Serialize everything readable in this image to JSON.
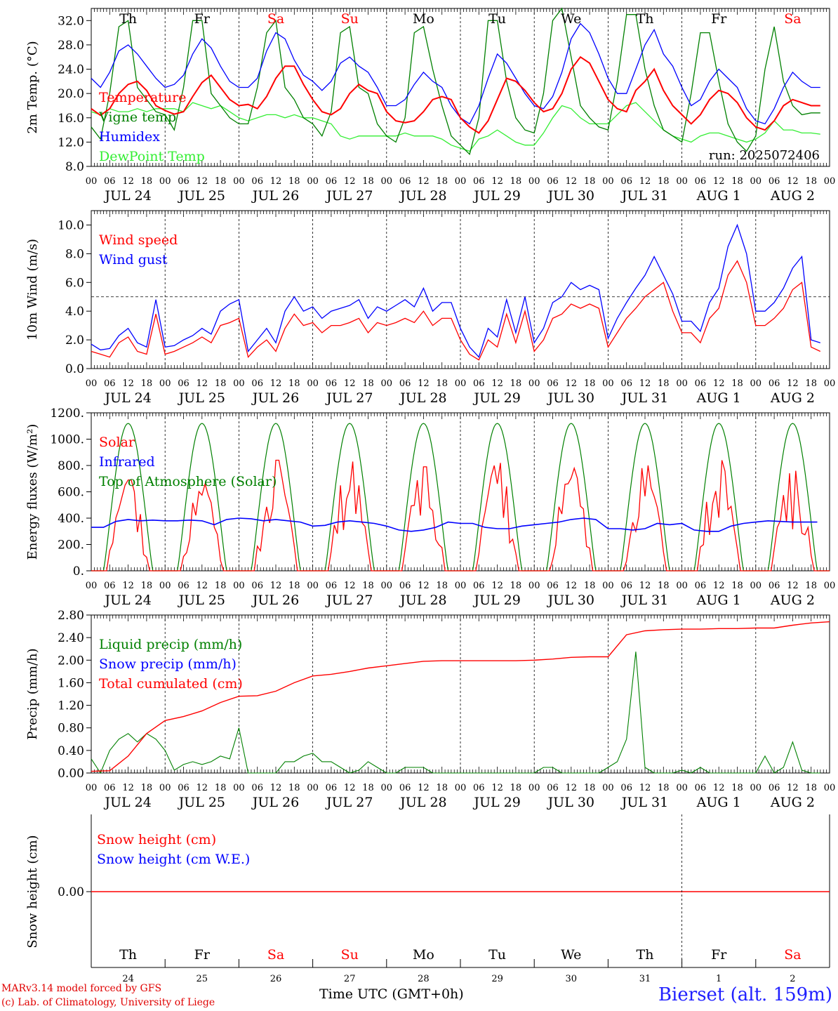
{
  "colors": {
    "red": "#ff0000",
    "green": "#008000",
    "blue": "#0000ff",
    "lightgreen": "#33ee33",
    "grid": "#000000"
  },
  "days": {
    "weekday": [
      "Th",
      "Fr",
      "Sa",
      "Su",
      "Mo",
      "Tu",
      "We",
      "Th",
      "Fr",
      "Sa"
    ],
    "weekend": [
      false,
      false,
      true,
      true,
      false,
      false,
      false,
      false,
      false,
      true
    ],
    "dates": [
      "JUL 24",
      "JUL 25",
      "JUL 26",
      "JUL 27",
      "JUL 28",
      "JUL 29",
      "JUL 30",
      "JUL 31",
      "AUG  1",
      "AUG  2"
    ],
    "day_numbers": [
      "24",
      "25",
      "26",
      "27",
      "28",
      "29",
      "30",
      "31",
      "1",
      "2"
    ],
    "hour_ticks": [
      "00",
      "06",
      "12",
      "18"
    ],
    "hour_end": "00"
  },
  "chart_data": [
    {
      "type": "line",
      "ylabel": "2m Temp. (°C)",
      "ylim": [
        8.0,
        34.0
      ],
      "yticks": [
        "8.0",
        "12.0",
        "16.0",
        "20.0",
        "24.0",
        "28.0",
        "32.0"
      ],
      "annotation": "run: 2025072406",
      "x_unit": "hours since JUL 24 00 UTC, 3-hourly",
      "series": [
        {
          "name": "Temperature",
          "color": "red",
          "values": [
            17.5,
            16.4,
            17.5,
            20.0,
            21.5,
            22.0,
            20.5,
            18.0,
            17.2,
            16.6,
            17.0,
            19.5,
            21.8,
            23.0,
            21.0,
            19.0,
            18.0,
            18.2,
            17.5,
            19.5,
            22.5,
            24.5,
            24.5,
            21.5,
            19.0,
            17.0,
            16.5,
            17.5,
            20.0,
            21.5,
            20.5,
            20.0,
            17.0,
            15.5,
            15.2,
            15.5,
            17.0,
            19.0,
            19.5,
            19.0,
            16.0,
            14.5,
            13.5,
            15.5,
            19.0,
            22.5,
            22.0,
            20.5,
            18.5,
            17.0,
            17.5,
            20.0,
            24.0,
            26.0,
            25.0,
            22.0,
            19.0,
            17.5,
            17.0,
            20.5,
            22.0,
            24.0,
            20.5,
            18.0,
            16.5,
            15.0,
            16.5,
            19.0,
            20.5,
            20.0,
            18.5,
            16.0,
            14.5,
            14.0,
            15.5,
            18.0,
            19.0,
            18.5,
            18.0,
            18.0
          ]
        },
        {
          "name": "Vigne temp",
          "color": "green",
          "values": [
            14.5,
            12.5,
            20.0,
            31.0,
            32.0,
            21.0,
            19.0,
            17.0,
            16.5,
            14.0,
            21.0,
            32.0,
            32.0,
            20.0,
            18.0,
            16.0,
            15.0,
            15.0,
            21.0,
            30.0,
            32.0,
            21.0,
            19.0,
            16.0,
            15.0,
            13.0,
            17.0,
            30.0,
            31.0,
            21.0,
            20.0,
            15.0,
            13.0,
            12.0,
            16.0,
            30.0,
            31.0,
            24.0,
            18.0,
            13.0,
            11.5,
            10.0,
            16.0,
            32.0,
            32.0,
            22.0,
            16.0,
            14.0,
            13.5,
            20.0,
            32.0,
            34.0,
            26.0,
            18.0,
            16.0,
            14.5,
            14.0,
            22.0,
            33.0,
            33.0,
            24.0,
            18.0,
            14.0,
            13.0,
            12.0,
            20.0,
            30.0,
            30.0,
            22.0,
            15.0,
            12.0,
            10.5,
            13.0,
            24.0,
            31.0,
            22.0,
            18.0,
            16.5,
            16.8,
            16.8
          ]
        },
        {
          "name": "Humidex",
          "color": "blue",
          "values": [
            22.5,
            21.0,
            23.5,
            27.0,
            28.0,
            26.5,
            24.5,
            22.5,
            21.0,
            21.5,
            23.0,
            26.5,
            29.0,
            27.5,
            24.5,
            22.0,
            21.0,
            21.0,
            22.5,
            27.0,
            30.0,
            29.0,
            25.5,
            23.0,
            22.0,
            20.5,
            22.0,
            25.0,
            26.0,
            24.5,
            23.5,
            21.0,
            18.0,
            18.0,
            19.0,
            21.5,
            23.5,
            22.0,
            21.0,
            18.0,
            16.0,
            15.0,
            18.0,
            22.5,
            26.5,
            25.0,
            22.5,
            20.0,
            18.0,
            17.5,
            19.5,
            23.5,
            29.0,
            31.5,
            30.0,
            26.5,
            22.5,
            20.0,
            20.0,
            24.0,
            28.0,
            30.5,
            26.5,
            24.5,
            21.0,
            18.0,
            19.0,
            22.0,
            24.0,
            22.5,
            21.0,
            17.5,
            15.5,
            15.0,
            17.5,
            21.0,
            23.5,
            22.0,
            21.0,
            21.0
          ]
        },
        {
          "name": "DewPoint Temp",
          "color": "lightgreen",
          "values": [
            17.0,
            16.5,
            17.5,
            17.0,
            17.0,
            17.5,
            17.0,
            17.5,
            17.5,
            17.5,
            17.0,
            18.5,
            18.0,
            17.5,
            18.0,
            17.0,
            16.0,
            15.5,
            16.0,
            16.5,
            16.5,
            16.0,
            16.5,
            16.0,
            16.0,
            15.5,
            15.0,
            13.0,
            12.5,
            13.0,
            13.0,
            13.0,
            13.0,
            13.0,
            13.5,
            13.0,
            13.0,
            13.0,
            12.5,
            11.5,
            11.0,
            10.5,
            12.5,
            13.0,
            14.0,
            13.0,
            12.0,
            11.5,
            11.5,
            13.5,
            16.0,
            18.0,
            17.5,
            16.0,
            15.0,
            15.0,
            15.0,
            16.5,
            18.0,
            18.5,
            17.0,
            15.5,
            14.0,
            13.0,
            12.5,
            12.0,
            13.0,
            13.5,
            13.5,
            13.0,
            12.5,
            12.0,
            12.5,
            13.5,
            15.5,
            14.0,
            14.0,
            13.5,
            13.5,
            13.3
          ]
        }
      ]
    },
    {
      "type": "line",
      "ylabel": "10m Wind (m/s)",
      "ylim": [
        0.0,
        11.0
      ],
      "yticks": [
        "0.0",
        "2.0",
        "4.0",
        "6.0",
        "8.0",
        "10.0"
      ],
      "reference_line": 5.0,
      "x_unit": "hours since JUL 24 00 UTC, 3-hourly",
      "series": [
        {
          "name": "Wind speed",
          "color": "red",
          "values": [
            1.2,
            1.0,
            0.8,
            1.8,
            2.2,
            1.2,
            1.0,
            3.8,
            1.0,
            1.2,
            1.5,
            1.8,
            2.2,
            1.8,
            3.0,
            3.2,
            3.5,
            0.8,
            1.5,
            2.0,
            1.2,
            2.8,
            3.8,
            3.0,
            3.2,
            2.5,
            3.0,
            3.0,
            3.2,
            3.5,
            2.5,
            3.2,
            3.0,
            3.2,
            3.5,
            3.2,
            4.0,
            3.0,
            3.5,
            3.5,
            2.0,
            1.0,
            0.6,
            2.0,
            1.5,
            3.8,
            1.8,
            4.0,
            1.2,
            2.0,
            3.5,
            3.8,
            4.5,
            4.2,
            4.5,
            4.2,
            1.5,
            2.5,
            3.5,
            4.2,
            5.0,
            5.5,
            6.0,
            4.0,
            2.5,
            2.5,
            1.8,
            3.5,
            4.2,
            6.5,
            7.5,
            6.0,
            3.0,
            3.0,
            3.5,
            4.2,
            5.5,
            6.0,
            1.5,
            1.2
          ]
        },
        {
          "name": "Wind gust",
          "color": "blue",
          "values": [
            1.7,
            1.3,
            1.4,
            2.3,
            2.8,
            1.8,
            1.5,
            4.8,
            1.5,
            1.6,
            2.0,
            2.3,
            2.8,
            2.4,
            4.0,
            4.5,
            4.8,
            1.2,
            2.0,
            2.8,
            1.8,
            4.0,
            5.0,
            4.0,
            4.3,
            3.5,
            4.0,
            4.2,
            4.4,
            4.8,
            3.5,
            4.3,
            4.0,
            4.4,
            4.8,
            4.3,
            5.6,
            4.0,
            4.6,
            4.6,
            2.8,
            1.5,
            0.8,
            2.8,
            2.2,
            4.8,
            2.5,
            5.0,
            1.8,
            2.8,
            4.6,
            5.0,
            6.0,
            5.5,
            5.8,
            5.5,
            2.1,
            3.5,
            4.6,
            5.6,
            6.5,
            7.8,
            6.5,
            5.2,
            3.3,
            3.3,
            2.6,
            4.6,
            5.6,
            8.5,
            10.0,
            8.0,
            4.0,
            4.0,
            4.6,
            5.6,
            7.0,
            7.8,
            2.0,
            1.8
          ]
        }
      ]
    },
    {
      "type": "line",
      "ylabel": "Energy fluxes (W/m²)",
      "ylim": [
        0.0,
        1200.0
      ],
      "yticks": [
        "0.",
        "200.",
        "400.",
        "600.",
        "800.",
        "1000.",
        "1200."
      ],
      "x_unit": "hours since JUL 24 00 UTC, hourly",
      "toa_peak": 1120,
      "solar_daily_peaks": [
        690,
        660,
        840,
        830,
        790,
        820,
        780,
        800,
        840,
        760
      ],
      "series": [
        {
          "name": "Solar",
          "color": "red"
        },
        {
          "name": "Infrared",
          "color": "blue",
          "values": [
            330,
            330,
            375,
            390,
            380,
            385,
            380,
            380,
            385,
            380,
            350,
            390,
            400,
            395,
            380,
            390,
            380,
            370,
            340,
            345,
            370,
            380,
            370,
            360,
            340,
            310,
            300,
            310,
            330,
            370,
            360,
            360,
            330,
            320,
            320,
            340,
            350,
            360,
            370,
            390,
            400,
            390,
            320,
            320,
            310,
            320,
            360,
            350,
            360,
            310,
            300,
            300,
            340,
            360,
            370,
            380,
            375,
            370,
            370,
            370
          ]
        },
        {
          "name": "Top of Atmosphere (Solar)",
          "color": "green"
        }
      ]
    },
    {
      "type": "line",
      "ylabel": "Precip (mm/h)",
      "ylim": [
        0.0,
        2.8
      ],
      "yticks": [
        "0.00",
        "0.40",
        "0.80",
        "1.20",
        "1.60",
        "2.00",
        "2.40",
        "2.80"
      ],
      "x_unit": "hours since JUL 24 00 UTC, 3-hourly",
      "series": [
        {
          "name": "Liquid precip (mm/h)",
          "color": "green",
          "values": [
            0.25,
            0.0,
            0.4,
            0.6,
            0.7,
            0.55,
            0.7,
            0.6,
            0.4,
            0.05,
            0.15,
            0.2,
            0.15,
            0.2,
            0.3,
            0.25,
            0.8,
            0.0,
            0.0,
            0.0,
            0.0,
            0.2,
            0.2,
            0.3,
            0.35,
            0.2,
            0.2,
            0.1,
            0.0,
            0.05,
            0.2,
            0.1,
            0.0,
            0.0,
            0.1,
            0.1,
            0.1,
            0.0,
            0.0,
            0.0,
            0.0,
            0.0,
            0.0,
            0.0,
            0.0,
            0.0,
            0.0,
            0.0,
            0.0,
            0.1,
            0.1,
            0.0,
            0.0,
            0.0,
            0.0,
            0.0,
            0.1,
            0.2,
            0.6,
            2.15,
            0.1,
            0.0,
            0.0,
            0.0,
            0.05,
            0.0,
            0.1,
            0.0,
            0.0,
            0.0,
            0.0,
            0.0,
            0.0,
            0.3,
            0.0,
            0.1,
            0.55,
            0.05,
            0.0,
            0.0
          ]
        },
        {
          "name": "Snow precip (mm/h)",
          "color": "blue"
        },
        {
          "name": "Total cumulated (cm)",
          "color": "red",
          "x": [
            0,
            6,
            12,
            18,
            24,
            30,
            36,
            42,
            48,
            54,
            60,
            66,
            72,
            78,
            84,
            90,
            96,
            102,
            108,
            114,
            120,
            126,
            132,
            138,
            144,
            150,
            156,
            162,
            168,
            174,
            180,
            186,
            192,
            198,
            204,
            210,
            216,
            222,
            228,
            234,
            240
          ],
          "values": [
            0.03,
            0.04,
            0.3,
            0.7,
            0.93,
            1.0,
            1.1,
            1.25,
            1.36,
            1.37,
            1.45,
            1.6,
            1.72,
            1.75,
            1.8,
            1.86,
            1.9,
            1.94,
            1.98,
            1.99,
            1.99,
            1.99,
            1.99,
            1.99,
            2.0,
            2.02,
            2.05,
            2.06,
            2.06,
            2.45,
            2.52,
            2.54,
            2.55,
            2.55,
            2.56,
            2.56,
            2.57,
            2.57,
            2.62,
            2.66,
            2.68
          ]
        }
      ]
    },
    {
      "type": "line",
      "ylabel": "Snow height (cm)",
      "yticks": [
        "0.00"
      ],
      "series": [
        {
          "name": "Snow height (cm)",
          "color": "red",
          "values": [
            0.0,
            0.0
          ]
        },
        {
          "name": "Snow height (cm W.E.)",
          "color": "blue"
        }
      ]
    }
  ],
  "footer": {
    "model": "MARv3.14 model forced by GFS",
    "lab": "(c) Lab. of Climatology, University of Liege",
    "axis_label": "Time UTC (GMT+0h)",
    "station": "Bierset (alt. 159m)"
  }
}
